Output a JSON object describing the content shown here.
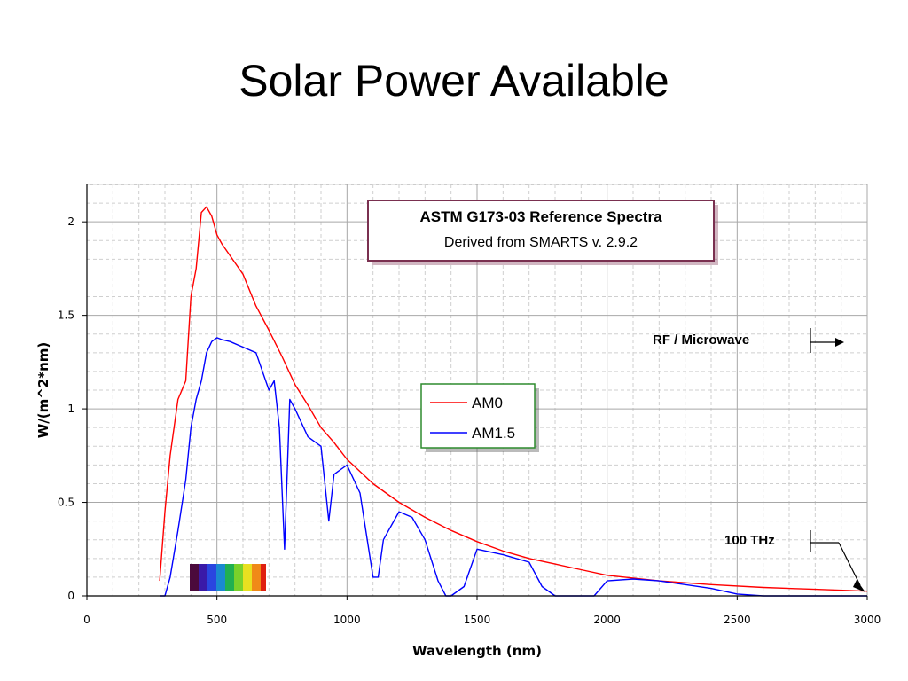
{
  "slide": {
    "title": "Solar Power Available"
  },
  "colors": {
    "am0": "#ff0000",
    "am15": "#0000ff",
    "box_border": "#7a3050",
    "legend_border": "#2e8b2e",
    "grid": "#b8b8b8"
  },
  "chart_data": {
    "type": "line",
    "xlabel": "Wavelength (nm)",
    "ylabel": "W/(m^2*nm)",
    "xlim": [
      0,
      3000
    ],
    "ylim": [
      0,
      2.2
    ],
    "x_ticks": [
      "0",
      "500",
      "1000",
      "1500",
      "2000",
      "2500",
      "3000"
    ],
    "y_ticks": [
      "0",
      "0.5",
      "1",
      "1.5",
      "2"
    ],
    "grid": true,
    "title_box": {
      "title": "ASTM G173-03 Reference Spectra",
      "subtitle": "Derived from SMARTS v. 2.9.2"
    },
    "legend_position": "center",
    "annotations": {
      "rf": "RF / Microwave",
      "thz": "100 THz"
    },
    "series": [
      {
        "name": "AM0",
        "x": [
          280,
          300,
          320,
          350,
          380,
          400,
          420,
          440,
          460,
          480,
          500,
          520,
          550,
          600,
          650,
          700,
          750,
          800,
          850,
          900,
          950,
          1000,
          1100,
          1200,
          1300,
          1400,
          1500,
          1600,
          1700,
          1800,
          1900,
          2000,
          2200,
          2400,
          2600,
          2800,
          3000
        ],
        "values": [
          0.08,
          0.45,
          0.75,
          1.05,
          1.15,
          1.6,
          1.75,
          2.05,
          2.08,
          2.03,
          1.93,
          1.88,
          1.82,
          1.72,
          1.55,
          1.42,
          1.28,
          1.13,
          1.02,
          0.9,
          0.82,
          0.73,
          0.6,
          0.5,
          0.42,
          0.35,
          0.29,
          0.24,
          0.2,
          0.17,
          0.14,
          0.11,
          0.08,
          0.06,
          0.045,
          0.035,
          0.025
        ]
      },
      {
        "name": "AM1.5",
        "x": [
          280,
          300,
          320,
          350,
          380,
          400,
          420,
          440,
          460,
          480,
          500,
          520,
          550,
          600,
          650,
          700,
          720,
          740,
          760,
          780,
          800,
          850,
          900,
          930,
          950,
          1000,
          1050,
          1100,
          1120,
          1140,
          1200,
          1250,
          1300,
          1350,
          1380,
          1400,
          1450,
          1500,
          1600,
          1700,
          1750,
          1800,
          1850,
          1900,
          1950,
          2000,
          2100,
          2200,
          2300,
          2400,
          2500,
          2600,
          2700,
          2800,
          3000
        ],
        "values": [
          0,
          0,
          0.1,
          0.35,
          0.62,
          0.9,
          1.05,
          1.15,
          1.3,
          1.36,
          1.38,
          1.37,
          1.36,
          1.33,
          1.3,
          1.1,
          1.15,
          0.9,
          0.25,
          1.05,
          1.0,
          0.85,
          0.8,
          0.4,
          0.65,
          0.7,
          0.55,
          0.1,
          0.1,
          0.3,
          0.45,
          0.42,
          0.3,
          0.08,
          0,
          0,
          0.05,
          0.25,
          0.22,
          0.18,
          0.05,
          0,
          0,
          0,
          0,
          0.08,
          0.09,
          0.08,
          0.06,
          0.04,
          0.01,
          0,
          0,
          0,
          0
        ]
      }
    ]
  }
}
